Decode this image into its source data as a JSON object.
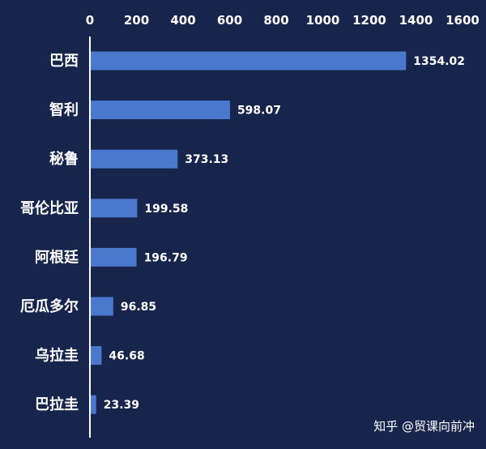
{
  "chart_data": {
    "type": "bar",
    "orientation": "horizontal",
    "categories": [
      "巴西",
      "智利",
      "秘鲁",
      "哥伦比亚",
      "阿根廷",
      "厄瓜多尔",
      "乌拉圭",
      "巴拉圭"
    ],
    "values": [
      1354.02,
      598.07,
      373.13,
      199.58,
      196.79,
      96.85,
      46.68,
      23.39
    ],
    "value_labels": [
      "1354.02",
      "598.07",
      "373.13",
      "199.58",
      "196.79",
      "96.85",
      "46.68",
      "23.39"
    ],
    "xlim": [
      0,
      1600
    ],
    "x_ticks": [
      "0",
      "200",
      "400",
      "600",
      "800",
      "1000",
      "1200",
      "1400",
      "1600"
    ],
    "x_tick_values": [
      0,
      200,
      400,
      600,
      800,
      1000,
      1200,
      1400,
      1600
    ],
    "x_axis_position": "top",
    "grid": false,
    "colors": {
      "background": "#17254d",
      "bar": "#4a78cc",
      "text": "#ffffff",
      "axis": "#ffffff"
    }
  },
  "watermark": "知乎 @贸课向前冲"
}
